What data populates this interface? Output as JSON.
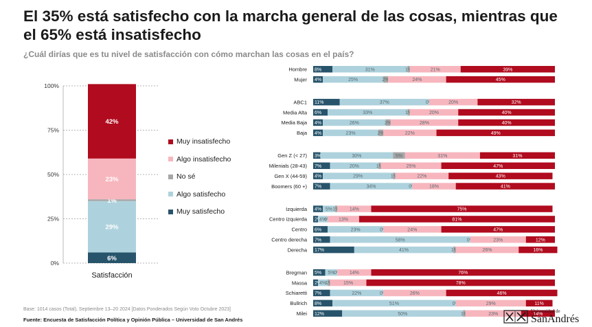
{
  "title": "El 35% está satisfecho con la marcha general de las cosas, mientras que el 65% está insatisfecho",
  "subtitle": "¿Cuál dirías que es tu nivel de satisfacción con cómo marchan las cosas en el país?",
  "colors": {
    "muy_satisfecho": "#27546b",
    "algo_satisfecho": "#aed2dd",
    "no_se": "#a6a6a6",
    "algo_insatisfecho": "#f7b6be",
    "muy_insatisfecho": "#b00b1e"
  },
  "legend": [
    {
      "key": "muy_insatisfecho",
      "label": "Muy insatisfecho"
    },
    {
      "key": "algo_insatisfecho",
      "label": "Algo insatisfecho"
    },
    {
      "key": "no_se",
      "label": "No sé"
    },
    {
      "key": "algo_satisfecho",
      "label": "Algo satisfecho"
    },
    {
      "key": "muy_satisfecho",
      "label": "Muy satisfecho"
    }
  ],
  "chart_data": [
    {
      "type": "bar",
      "stacked": true,
      "orientation": "vertical",
      "categories": [
        "Satisfacción"
      ],
      "yticks": [
        "0%",
        "25%",
        "50%",
        "75%",
        "100%"
      ],
      "ylim": [
        0,
        100
      ],
      "series": [
        {
          "key": "muy_satisfecho",
          "values": [
            6
          ]
        },
        {
          "key": "algo_satisfecho",
          "values": [
            29
          ]
        },
        {
          "key": "no_se",
          "values": [
            1
          ]
        },
        {
          "key": "algo_insatisfecho",
          "values": [
            23
          ]
        },
        {
          "key": "muy_insatisfecho",
          "values": [
            42
          ]
        }
      ],
      "labels": [
        "6%",
        "29%",
        "1%",
        "23%",
        "42%"
      ]
    },
    {
      "type": "bar",
      "stacked": true,
      "orientation": "horizontal",
      "order": [
        "muy_satisfecho",
        "algo_satisfecho",
        "no_se",
        "algo_insatisfecho",
        "muy_insatisfecho"
      ],
      "groups": [
        {
          "rows": [
            {
              "label": "Hombre",
              "values": [
                8,
                31,
                1,
                21,
                39
              ],
              "labels": [
                "8%",
                "31%",
                "1%",
                "21%",
                "39%"
              ]
            },
            {
              "label": "Mujer",
              "values": [
                4,
                25,
                2,
                24,
                45
              ],
              "labels": [
                "4%",
                "25%",
                "2%",
                "24%",
                "45%"
              ]
            }
          ]
        },
        {
          "rows": [
            {
              "label": "ABC1",
              "values": [
                11,
                37,
                0,
                20,
                32
              ],
              "labels": [
                "11%",
                "37%",
                "0%",
                "20%",
                "32%"
              ]
            },
            {
              "label": "Media Alta",
              "values": [
                6,
                33,
                1,
                20,
                40
              ],
              "labels": [
                "6%",
                "33%",
                "1%",
                "20%",
                "40%"
              ]
            },
            {
              "label": "Media Baja",
              "values": [
                4,
                26,
                2,
                28,
                40
              ],
              "labels": [
                "4%",
                "26%",
                "2%",
                "28%",
                "40%"
              ]
            },
            {
              "label": "Baja",
              "values": [
                4,
                23,
                2,
                22,
                49
              ],
              "labels": [
                "4%",
                "23%",
                "2%",
                "22%",
                "49%"
              ]
            }
          ]
        },
        {
          "rows": [
            {
              "label": "Gen Z (< 27)",
              "values": [
                3,
                30,
                5,
                31,
                31
              ],
              "labels": [
                "3%",
                "30%",
                "5%",
                "31%",
                "31%"
              ]
            },
            {
              "label": "Milenials (28-43)",
              "values": [
                7,
                20,
                1,
                25,
                47
              ],
              "labels": [
                "7%",
                "20%",
                "1%",
                "25%",
                "47%"
              ]
            },
            {
              "label": "Gen X (44-59)",
              "values": [
                4,
                29,
                1,
                22,
                43
              ],
              "labels": [
                "4%",
                "29%",
                "1%",
                "22%",
                "43%"
              ]
            },
            {
              "label": "Boomers (60 +)",
              "values": [
                7,
                34,
                0,
                18,
                41
              ],
              "labels": [
                "7%",
                "34%",
                "0%",
                "18%",
                "41%"
              ]
            }
          ]
        },
        {
          "rows": [
            {
              "label": "Izquierda",
              "values": [
                4,
                5,
                1,
                14,
                75
              ],
              "labels": [
                "4%",
                "5%",
                "1%",
                "14%",
                "75%"
              ]
            },
            {
              "label": "Centro izquierda",
              "values": [
                2,
                4,
                0,
                13,
                81
              ],
              "labels": [
                "2%",
                "4%",
                "0%",
                "13%",
                "81%"
              ]
            },
            {
              "label": "Centro",
              "values": [
                6,
                23,
                0,
                24,
                47
              ],
              "labels": [
                "6%",
                "23%",
                "0%",
                "24%",
                "47%"
              ]
            },
            {
              "label": "Centro derecha",
              "values": [
                7,
                58,
                0,
                23,
                12
              ],
              "labels": [
                "7%",
                "58%",
                "0%",
                "23%",
                "12%"
              ]
            },
            {
              "label": "Derecha",
              "values": [
                17,
                41,
                1,
                26,
                16
              ],
              "labels": [
                "17%",
                "41%",
                "1%",
                "26%",
                "16%"
              ]
            }
          ]
        },
        {
          "rows": [
            {
              "label": "Bregman",
              "values": [
                5,
                5,
                0,
                14,
                76
              ],
              "labels": [
                "5%",
                "5%",
                "0%",
                "14%",
                "76%"
              ]
            },
            {
              "label": "Massa",
              "values": [
                2,
                4,
                1,
                15,
                78
              ],
              "labels": [
                "2%",
                "4%",
                "1%",
                "15%",
                "78%"
              ]
            },
            {
              "label": "Schiaretti",
              "values": [
                7,
                22,
                0,
                26,
                46
              ],
              "labels": [
                "7%",
                "22%",
                "0%",
                "26%",
                "46%"
              ]
            },
            {
              "label": "Bullrich",
              "values": [
                8,
                51,
                0,
                29,
                11
              ],
              "labels": [
                "8%",
                "51%",
                "0%",
                "29%",
                "11%"
              ]
            },
            {
              "label": "Milei",
              "values": [
                12,
                50,
                1,
                23,
                14
              ],
              "labels": [
                "12%",
                "50%",
                "1%",
                "23%",
                "14%"
              ]
            }
          ]
        }
      ]
    }
  ],
  "footer": {
    "base": "Base: 1014 casos (Total), Septiembre 13–20 2024 [Datos Ponderados Según Voto Octubre 2023]",
    "source": "Fuente: Encuesta de Satisfacción Política y Opinión Pública – Universidad de San Andrés"
  },
  "logo": {
    "small": "Universidad de",
    "big": "SanAndrés",
    "icon": "university-crest-icon"
  }
}
